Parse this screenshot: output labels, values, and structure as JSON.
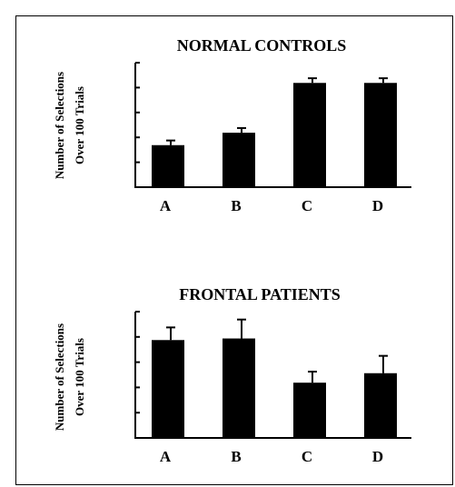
{
  "chart_data": [
    {
      "type": "bar",
      "title": "NORMAL CONTROLS",
      "ylabel_line1": "Number of Selections",
      "ylabel_line2": "Over 100 Trials",
      "categories": [
        "A",
        "B",
        "C",
        "D"
      ],
      "values": [
        13.5,
        17.5,
        33.5,
        33.5
      ],
      "errors": [
        1.5,
        1.5,
        1.5,
        1.5
      ],
      "ylim": [
        0,
        40
      ],
      "yticks": 6,
      "grid": false,
      "bar_color": "#000000"
    },
    {
      "type": "bar",
      "title": "FRONTAL PATIENTS",
      "ylabel_line1": "Number of Selections",
      "ylabel_line2": "Over 100 Trials",
      "categories": [
        "A",
        "B",
        "C",
        "D"
      ],
      "values": [
        31,
        31.5,
        17.5,
        20.5
      ],
      "errors": [
        4,
        6,
        3.5,
        5.5
      ],
      "ylim": [
        0,
        40
      ],
      "yticks": 6,
      "grid": false,
      "bar_color": "#000000"
    }
  ]
}
